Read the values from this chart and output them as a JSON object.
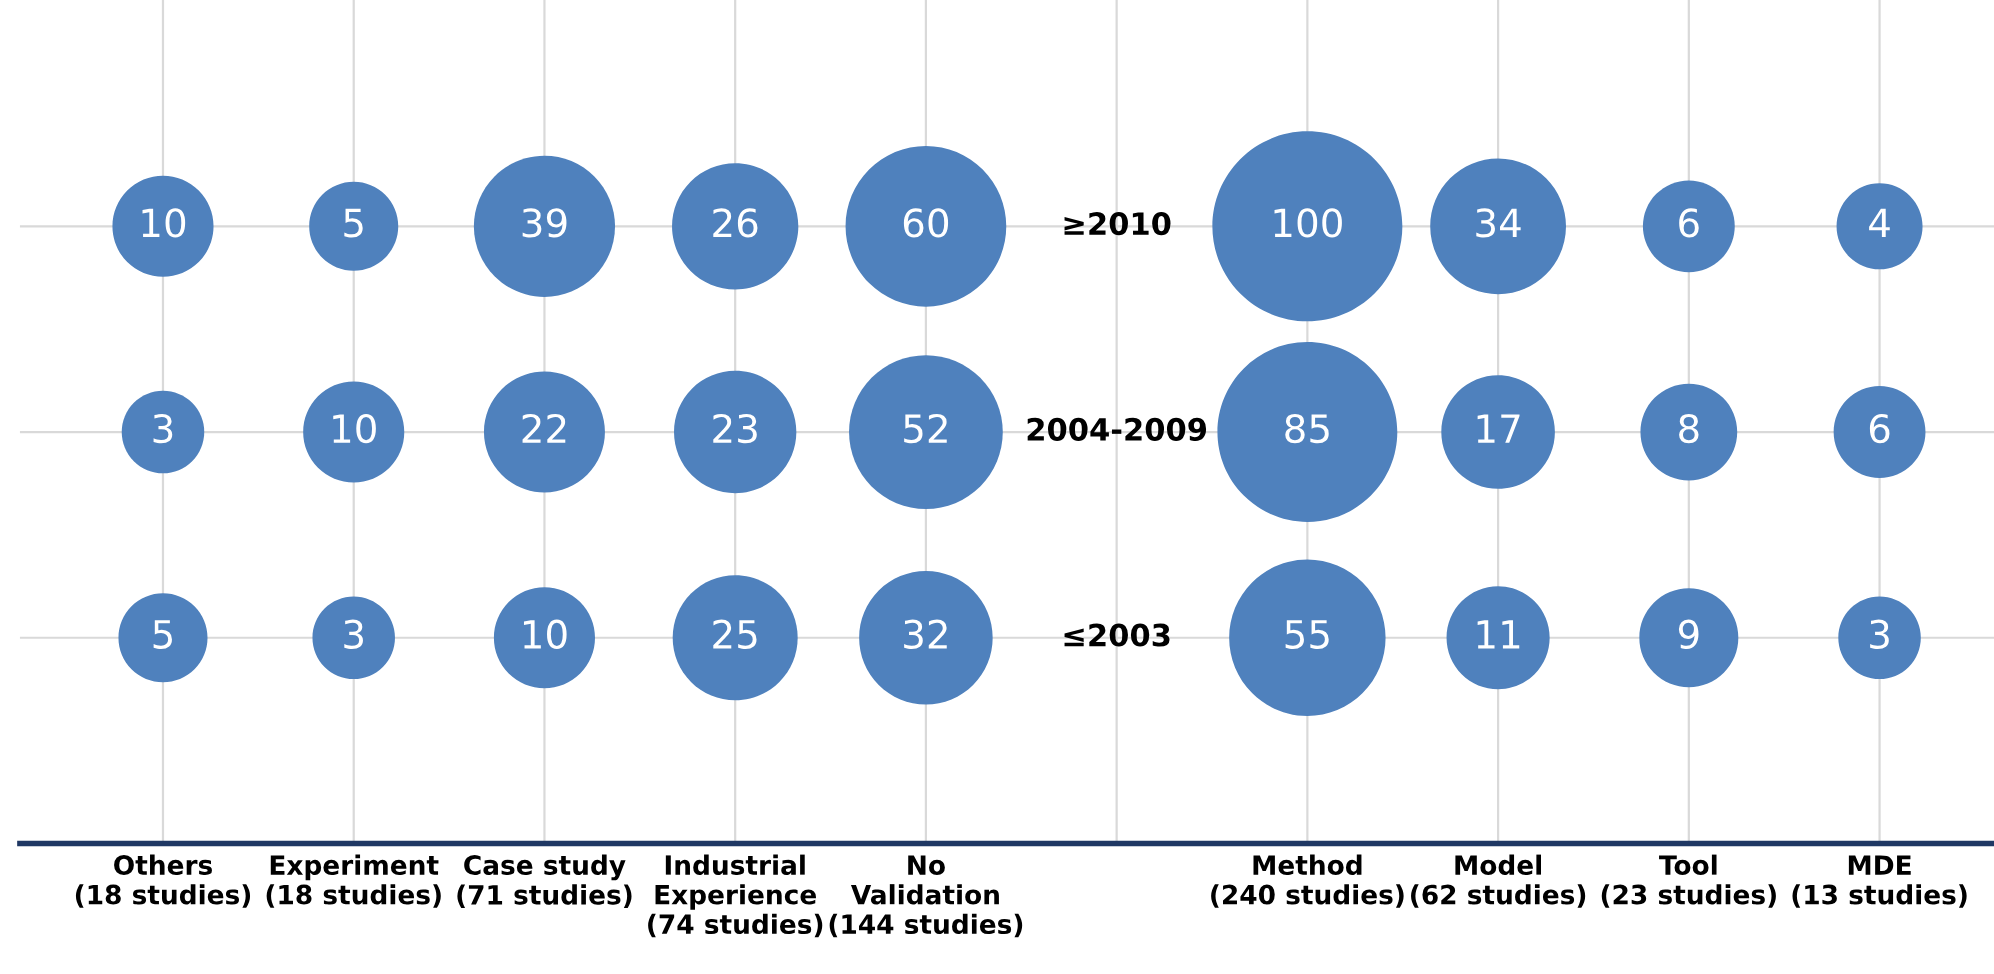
{
  "chart_data": {
    "type": "other",
    "data_labels": true,
    "categories": [
      "Others\n(18 studies)",
      "Experiment\n(18 studies)",
      "Case study\n(71 studies)",
      "Industrial\nExperience\n(74 studies)",
      "No\nValidation\n(144 studies)",
      null,
      "Method\n(240 studies)",
      "Model\n(62 studies)",
      "Tool\n(23 studies)",
      "MDE\n(13 studies)"
    ],
    "series": [
      {
        "name": "≤2003",
        "color": "#4f81bd",
        "values": [
          5,
          3,
          10,
          25,
          32,
          null,
          55,
          11,
          9,
          3
        ]
      },
      {
        "name": "2004-2009",
        "color": "#4f81bd",
        "values": [
          3,
          10,
          22,
          23,
          52,
          null,
          85,
          17,
          8,
          6
        ]
      },
      {
        "name": "≥2010",
        "color": "#4f81bd",
        "values": [
          10,
          5,
          39,
          26,
          60,
          null,
          100,
          34,
          6,
          4
        ]
      }
    ]
  }
}
